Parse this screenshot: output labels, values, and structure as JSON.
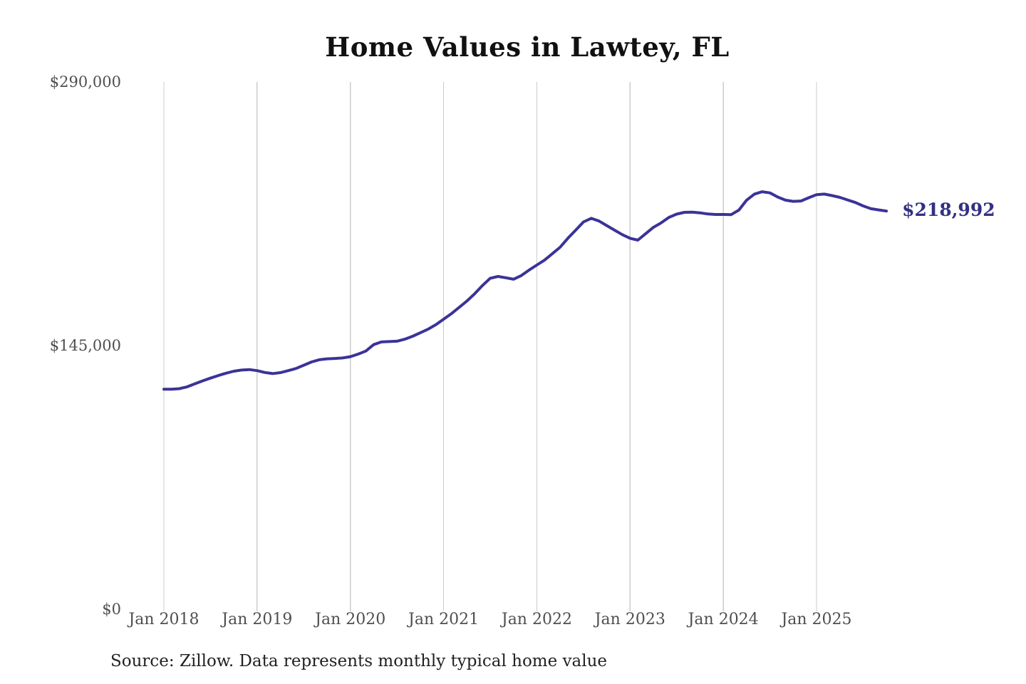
{
  "colors": {
    "line": "#3b3397",
    "end_label": "#333083",
    "grid": "#cccccc",
    "axis_text": "#4f4f4f",
    "title_text": "#111111"
  },
  "chart_data": {
    "type": "line",
    "title": "Home Values in Lawtey, FL",
    "x_unit": "month",
    "x_start": "2018-01",
    "x_end": "2025-10",
    "x_tick_labels": [
      "Jan 2018",
      "Jan 2019",
      "Jan 2020",
      "Jan 2021",
      "Jan 2022",
      "Jan 2023",
      "Jan 2024",
      "Jan 2025"
    ],
    "y_ticks": [
      {
        "value": 0,
        "label": "$0"
      },
      {
        "value": 145000,
        "label": "$145,000"
      },
      {
        "value": 290000,
        "label": "$290,000"
      }
    ],
    "ylim": [
      0,
      290000
    ],
    "grid": "vertical-only",
    "legend": "none",
    "final_value_label": "$218,992",
    "source": "Source: Zillow. Data represents monthly typical home value",
    "series": [
      {
        "name": "Monthly typical home value",
        "values": [
          121000,
          121000,
          121300,
          122300,
          124000,
          125600,
          127100,
          128500,
          129800,
          130900,
          131500,
          131800,
          131200,
          130200,
          129600,
          130100,
          131200,
          132400,
          134200,
          136000,
          137200,
          137700,
          137900,
          138200,
          138900,
          140300,
          142000,
          145500,
          147000,
          147200,
          147400,
          148500,
          150100,
          152000,
          154000,
          156500,
          159500,
          162500,
          166000,
          169500,
          173500,
          178000,
          182000,
          183000,
          182300,
          181500,
          183500,
          186500,
          189300,
          192000,
          195500,
          199100,
          204000,
          208500,
          213000,
          215000,
          213500,
          211000,
          208500,
          206000,
          204000,
          203000,
          206500,
          210000,
          212500,
          215500,
          217300,
          218300,
          218400,
          218000,
          217400,
          217100,
          217100,
          217000,
          219500,
          225000,
          228300,
          229600,
          229000,
          226700,
          225000,
          224300,
          224500,
          226300,
          228000,
          228300,
          227500,
          226500,
          225100,
          223700,
          221800,
          220300,
          219600,
          218992
        ]
      }
    ]
  }
}
